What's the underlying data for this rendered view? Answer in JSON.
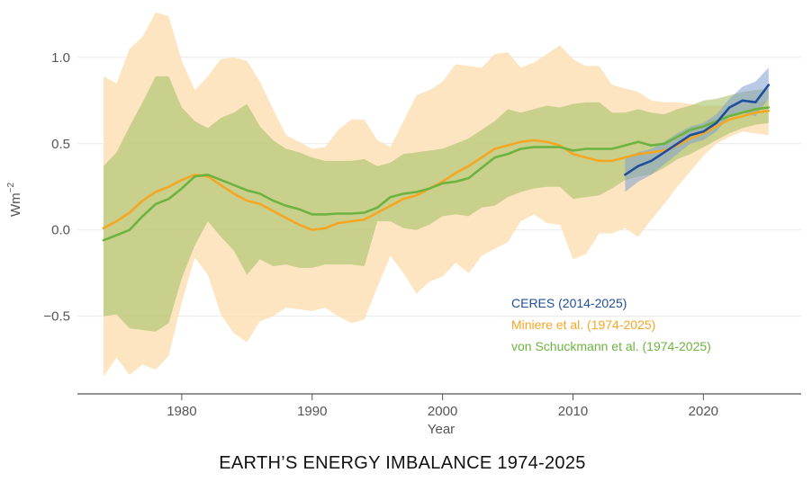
{
  "chart_data": {
    "type": "line",
    "title": "EARTH’S ENERGY IMBALANCE 1974-2025",
    "xlabel": "Year",
    "ylabel_base": "Wm",
    "ylabel_exp": "−2",
    "xlim": [
      1972,
      2027.5
    ],
    "ylim": [
      -0.95,
      1.27
    ],
    "xticks": [
      1980,
      1990,
      2000,
      2010,
      2020
    ],
    "xtick_labels": [
      "1980",
      "1990",
      "2000",
      "2010",
      "2020"
    ],
    "yticks": [
      1.0,
      0.5,
      0.0,
      -0.5
    ],
    "ytick_labels": [
      "1.0",
      "0.5",
      "0.0",
      "−0.5"
    ],
    "grid": "horizontal",
    "legend_position": "lower-right",
    "colors": {
      "ceres": "#1f4e9c",
      "ceres_band": "#7f9fd1",
      "miniere": "#f5a623",
      "miniere_band": "#fce0b5",
      "schuckmann": "#6db33f",
      "schuckmann_band": "#a7c168"
    },
    "series": [
      {
        "name": "CERES (2014-2025)",
        "key": "ceres",
        "x": [
          2014,
          2015,
          2016,
          2017,
          2018,
          2019,
          2020,
          2021,
          2022,
          2023,
          2024,
          2025
        ],
        "y": [
          0.32,
          0.37,
          0.4,
          0.45,
          0.5,
          0.55,
          0.57,
          0.62,
          0.71,
          0.75,
          0.74,
          0.84
        ],
        "upper": [
          0.42,
          0.45,
          0.47,
          0.51,
          0.56,
          0.6,
          0.62,
          0.67,
          0.76,
          0.83,
          0.86,
          0.94
        ],
        "lower": [
          0.22,
          0.28,
          0.32,
          0.38,
          0.44,
          0.5,
          0.52,
          0.57,
          0.66,
          0.68,
          0.66,
          0.76
        ]
      },
      {
        "name": "Miniere et al. (1974-2025)",
        "key": "miniere",
        "x": [
          1974,
          1975,
          1976,
          1977,
          1978,
          1979,
          1980,
          1981,
          1982,
          1983,
          1984,
          1985,
          1986,
          1987,
          1988,
          1989,
          1990,
          1991,
          1992,
          1993,
          1994,
          1995,
          1996,
          1997,
          1998,
          1999,
          2000,
          2001,
          2002,
          2003,
          2004,
          2005,
          2006,
          2007,
          2008,
          2009,
          2010,
          2011,
          2012,
          2013,
          2014,
          2015,
          2016,
          2017,
          2018,
          2019,
          2020,
          2021,
          2022,
          2023,
          2024,
          2025
        ],
        "y": [
          0.01,
          0.05,
          0.1,
          0.17,
          0.22,
          0.25,
          0.29,
          0.32,
          0.31,
          0.26,
          0.21,
          0.17,
          0.15,
          0.11,
          0.07,
          0.03,
          0.0,
          0.01,
          0.04,
          0.05,
          0.06,
          0.1,
          0.14,
          0.18,
          0.2,
          0.24,
          0.28,
          0.33,
          0.37,
          0.42,
          0.47,
          0.49,
          0.51,
          0.52,
          0.51,
          0.49,
          0.44,
          0.42,
          0.4,
          0.4,
          0.42,
          0.44,
          0.45,
          0.46,
          0.49,
          0.53,
          0.56,
          0.6,
          0.64,
          0.66,
          0.68,
          0.69
        ],
        "upper": [
          0.89,
          0.85,
          1.05,
          1.12,
          1.26,
          1.24,
          0.98,
          0.81,
          0.89,
          0.99,
          1.0,
          0.98,
          0.86,
          0.7,
          0.55,
          0.51,
          0.47,
          0.48,
          0.58,
          0.64,
          0.64,
          0.52,
          0.48,
          0.63,
          0.78,
          0.81,
          0.86,
          0.96,
          0.95,
          0.94,
          1.02,
          1.03,
          0.94,
          0.97,
          1.02,
          1.07,
          0.99,
          0.95,
          0.95,
          0.84,
          0.82,
          0.8,
          0.75,
          0.74,
          0.74,
          0.73,
          0.72,
          0.72,
          0.72,
          0.73,
          0.74,
          0.75
        ],
        "lower": [
          -0.85,
          -0.74,
          -0.84,
          -0.78,
          -0.81,
          -0.73,
          -0.42,
          -0.16,
          -0.26,
          -0.49,
          -0.6,
          -0.65,
          -0.53,
          -0.5,
          -0.45,
          -0.46,
          -0.47,
          -0.45,
          -0.5,
          -0.54,
          -0.52,
          -0.33,
          -0.15,
          -0.25,
          -0.37,
          -0.3,
          -0.27,
          -0.19,
          -0.25,
          -0.15,
          -0.11,
          -0.07,
          0.05,
          0.09,
          0.04,
          0.03,
          -0.17,
          -0.14,
          -0.02,
          -0.02,
          0.01,
          -0.04,
          0.06,
          0.15,
          0.25,
          0.34,
          0.43,
          0.5,
          0.54,
          0.57,
          0.56,
          0.55
        ]
      },
      {
        "name": "von Schuckmann et al. (1974-2025)",
        "key": "schuckmann",
        "x": [
          1974,
          1975,
          1976,
          1977,
          1978,
          1979,
          1980,
          1981,
          1982,
          1983,
          1984,
          1985,
          1986,
          1987,
          1988,
          1989,
          1990,
          1991,
          1992,
          1993,
          1994,
          1995,
          1996,
          1997,
          1998,
          1999,
          2000,
          2001,
          2002,
          2003,
          2004,
          2005,
          2006,
          2007,
          2008,
          2009,
          2010,
          2011,
          2012,
          2013,
          2014,
          2015,
          2016,
          2017,
          2018,
          2019,
          2020,
          2021,
          2022,
          2023,
          2024,
          2025
        ],
        "y": [
          -0.06,
          -0.03,
          0.0,
          0.08,
          0.15,
          0.18,
          0.24,
          0.31,
          0.32,
          0.29,
          0.26,
          0.23,
          0.21,
          0.17,
          0.14,
          0.12,
          0.09,
          0.09,
          0.095,
          0.095,
          0.1,
          0.13,
          0.19,
          0.21,
          0.22,
          0.24,
          0.27,
          0.28,
          0.3,
          0.36,
          0.42,
          0.44,
          0.47,
          0.48,
          0.48,
          0.48,
          0.46,
          0.47,
          0.47,
          0.47,
          0.49,
          0.51,
          0.49,
          0.5,
          0.54,
          0.58,
          0.6,
          0.63,
          0.66,
          0.68,
          0.7,
          0.71
        ],
        "upper": [
          0.37,
          0.45,
          0.6,
          0.74,
          0.89,
          0.89,
          0.71,
          0.63,
          0.59,
          0.65,
          0.68,
          0.73,
          0.6,
          0.52,
          0.47,
          0.45,
          0.42,
          0.4,
          0.4,
          0.4,
          0.41,
          0.37,
          0.39,
          0.44,
          0.45,
          0.46,
          0.47,
          0.5,
          0.53,
          0.58,
          0.63,
          0.7,
          0.68,
          0.7,
          0.72,
          0.71,
          0.73,
          0.74,
          0.74,
          0.68,
          0.68,
          0.7,
          0.68,
          0.67,
          0.7,
          0.72,
          0.75,
          0.76,
          0.78,
          0.8,
          0.81,
          0.82
        ],
        "lower": [
          -0.5,
          -0.49,
          -0.57,
          -0.58,
          -0.59,
          -0.54,
          -0.28,
          -0.09,
          0.05,
          -0.04,
          -0.12,
          -0.26,
          -0.17,
          -0.21,
          -0.2,
          -0.22,
          -0.22,
          -0.2,
          -0.2,
          -0.2,
          -0.21,
          0.05,
          0.05,
          0.01,
          0.0,
          0.03,
          0.08,
          0.09,
          0.08,
          0.13,
          0.14,
          0.19,
          0.22,
          0.24,
          0.25,
          0.25,
          0.18,
          0.19,
          0.2,
          0.24,
          0.29,
          0.31,
          0.32,
          0.36,
          0.41,
          0.44,
          0.48,
          0.52,
          0.56,
          0.59,
          0.61,
          0.62
        ]
      }
    ]
  }
}
